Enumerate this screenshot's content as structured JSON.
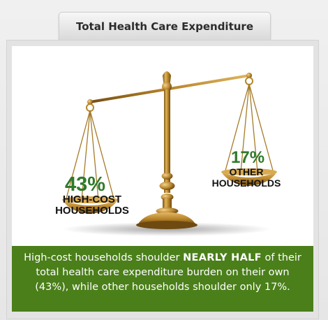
{
  "header": {
    "title": "Total Health Care Expenditure"
  },
  "chart_data": {
    "type": "other",
    "categories": [
      "HIGH-COST HOUSEHOLDS",
      "OTHER HOUSEHOLDS"
    ],
    "values": [
      43,
      17
    ],
    "value_labels": [
      "43%",
      "17%"
    ],
    "left_label_lines": [
      "HIGH-COST",
      "HOUSEHOLDS"
    ],
    "right_label_lines": [
      "OTHER",
      "HOUSEHOLDS"
    ]
  },
  "caption": {
    "part1": "High-cost households shoulder ",
    "emphasis": "NEARLY HALF",
    "part2": " of their total health care expenditure burden on their own (43%), while other households shoulder only 17%."
  },
  "colors": {
    "accent_green": "#4b7f1a",
    "percent_green": "#2f7a2b",
    "brass": "#b8862b"
  },
  "icons": {
    "scale": "balance-scale-icon"
  }
}
